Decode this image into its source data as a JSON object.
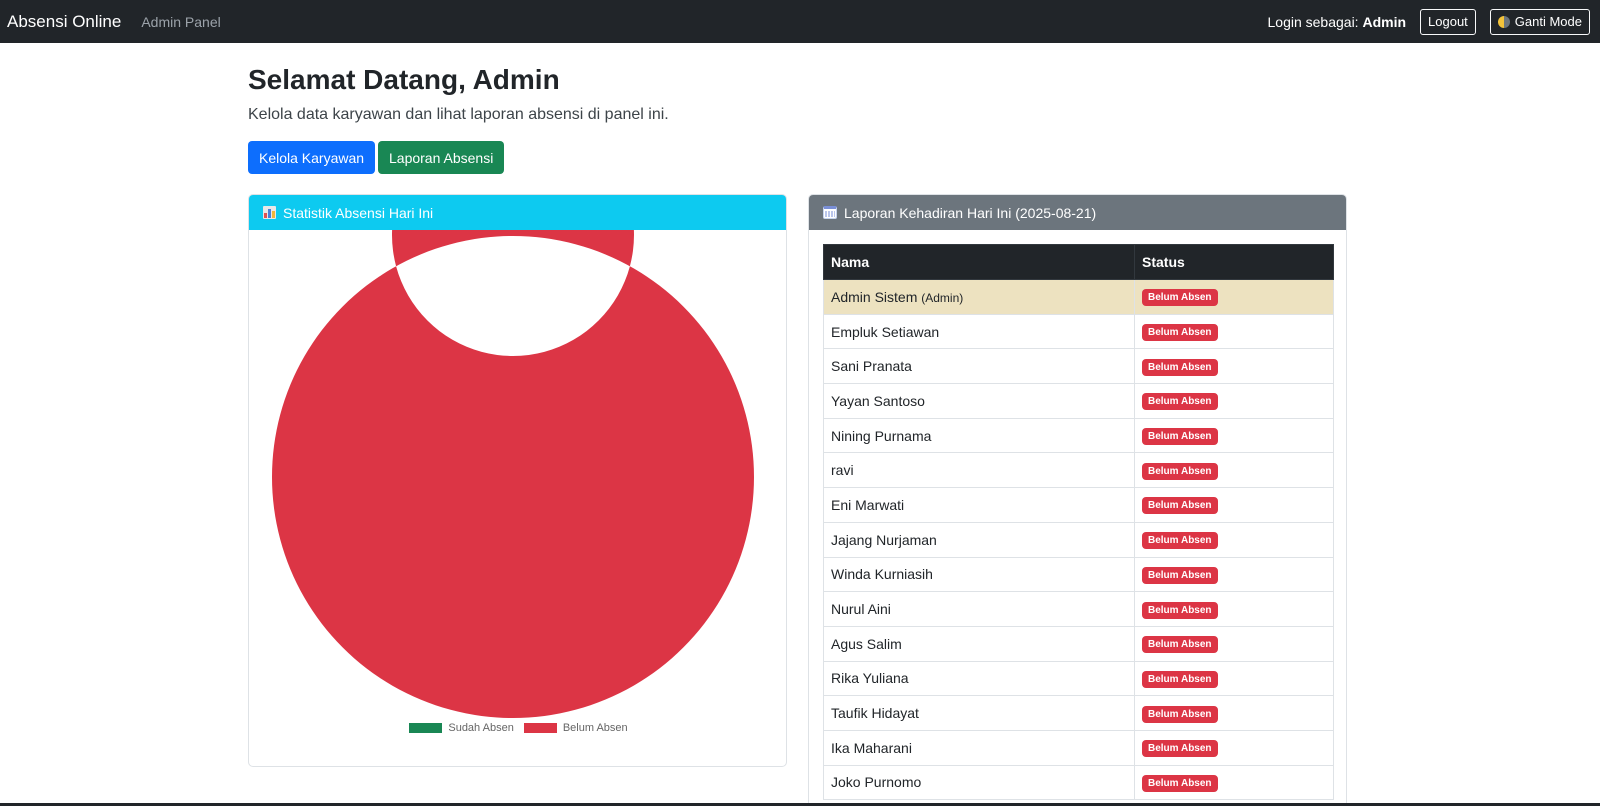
{
  "navbar": {
    "brand": "Absensi Online",
    "panel_link": "Admin Panel",
    "login_label": "Login sebagai:",
    "login_user": "Admin",
    "logout": "Logout",
    "mode_toggle": "Ganti Mode"
  },
  "header": {
    "title": "Selamat Datang, Admin",
    "lead": "Kelola data karyawan dan lihat laporan absensi di panel ini.",
    "btn_manage": "Kelola Karyawan",
    "btn_report": "Laporan Absensi"
  },
  "chart_card": {
    "title": "Statistik Absensi Hari Ini"
  },
  "chart_data": {
    "type": "pie",
    "variant": "doughnut",
    "categories": [
      "Sudah Absen",
      "Belum Absen"
    ],
    "values": [
      0,
      15
    ],
    "colors": [
      "#198754",
      "#dc3545"
    ],
    "legend_position": "bottom"
  },
  "table_card": {
    "title": "Laporan Kehadiran Hari Ini (2025-08-21)",
    "col_name": "Nama",
    "col_status": "Status",
    "rows": [
      {
        "name": "Admin Sistem",
        "role": "(Admin)",
        "status": "Belum Absen"
      },
      {
        "name": "Empluk Setiawan",
        "status": "Belum Absen"
      },
      {
        "name": "Sani Pranata",
        "status": "Belum Absen"
      },
      {
        "name": "Yayan Santoso",
        "status": "Belum Absen"
      },
      {
        "name": "Nining Purnama",
        "status": "Belum Absen"
      },
      {
        "name": "ravi",
        "status": "Belum Absen"
      },
      {
        "name": "Eni Marwati",
        "status": "Belum Absen"
      },
      {
        "name": "Jajang Nurjaman",
        "status": "Belum Absen"
      },
      {
        "name": "Winda Kurniasih",
        "status": "Belum Absen"
      },
      {
        "name": "Nurul Aini",
        "status": "Belum Absen"
      },
      {
        "name": "Agus Salim",
        "status": "Belum Absen"
      },
      {
        "name": "Rika Yuliana",
        "status": "Belum Absen"
      },
      {
        "name": "Taufik Hidayat",
        "status": "Belum Absen"
      },
      {
        "name": "Ika Maharani",
        "status": "Belum Absen"
      },
      {
        "name": "Joko Purnomo",
        "status": "Belum Absen"
      }
    ]
  }
}
